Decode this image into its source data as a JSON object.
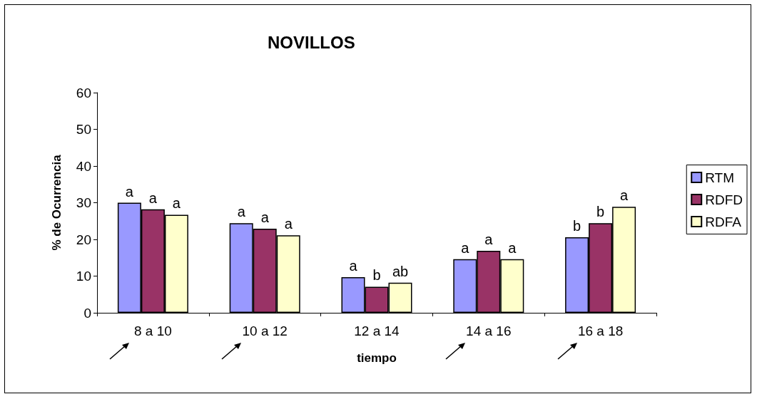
{
  "chart_data": {
    "type": "bar",
    "title": "NOVILLOS",
    "xlabel": "tiempo",
    "ylabel": "% de Ocurrencia",
    "categories": [
      "8 a 10",
      "10 a 12",
      "12 a 14",
      "14 a 16",
      "16 a 18"
    ],
    "series": [
      {
        "name": "RTM",
        "color": "#9999ff",
        "values": [
          30.0,
          24.4,
          9.7,
          14.6,
          20.6
        ],
        "value_labels": [
          "a",
          "a",
          "a",
          "a",
          "b"
        ]
      },
      {
        "name": "RDFD",
        "color": "#993366",
        "values": [
          28.2,
          22.9,
          7.1,
          16.9,
          24.4
        ],
        "value_labels": [
          "a",
          "a",
          "b",
          "a",
          "b"
        ]
      },
      {
        "name": "RDFA",
        "color": "#ffffcc",
        "values": [
          26.7,
          21.1,
          8.2,
          14.6,
          28.9
        ],
        "value_labels": [
          "a",
          "a",
          "ab",
          "a",
          "a"
        ]
      }
    ],
    "ylim": [
      0,
      60
    ],
    "yticks": [
      0,
      10,
      20,
      30,
      40,
      50,
      60
    ],
    "grid": false,
    "legend": "right"
  }
}
